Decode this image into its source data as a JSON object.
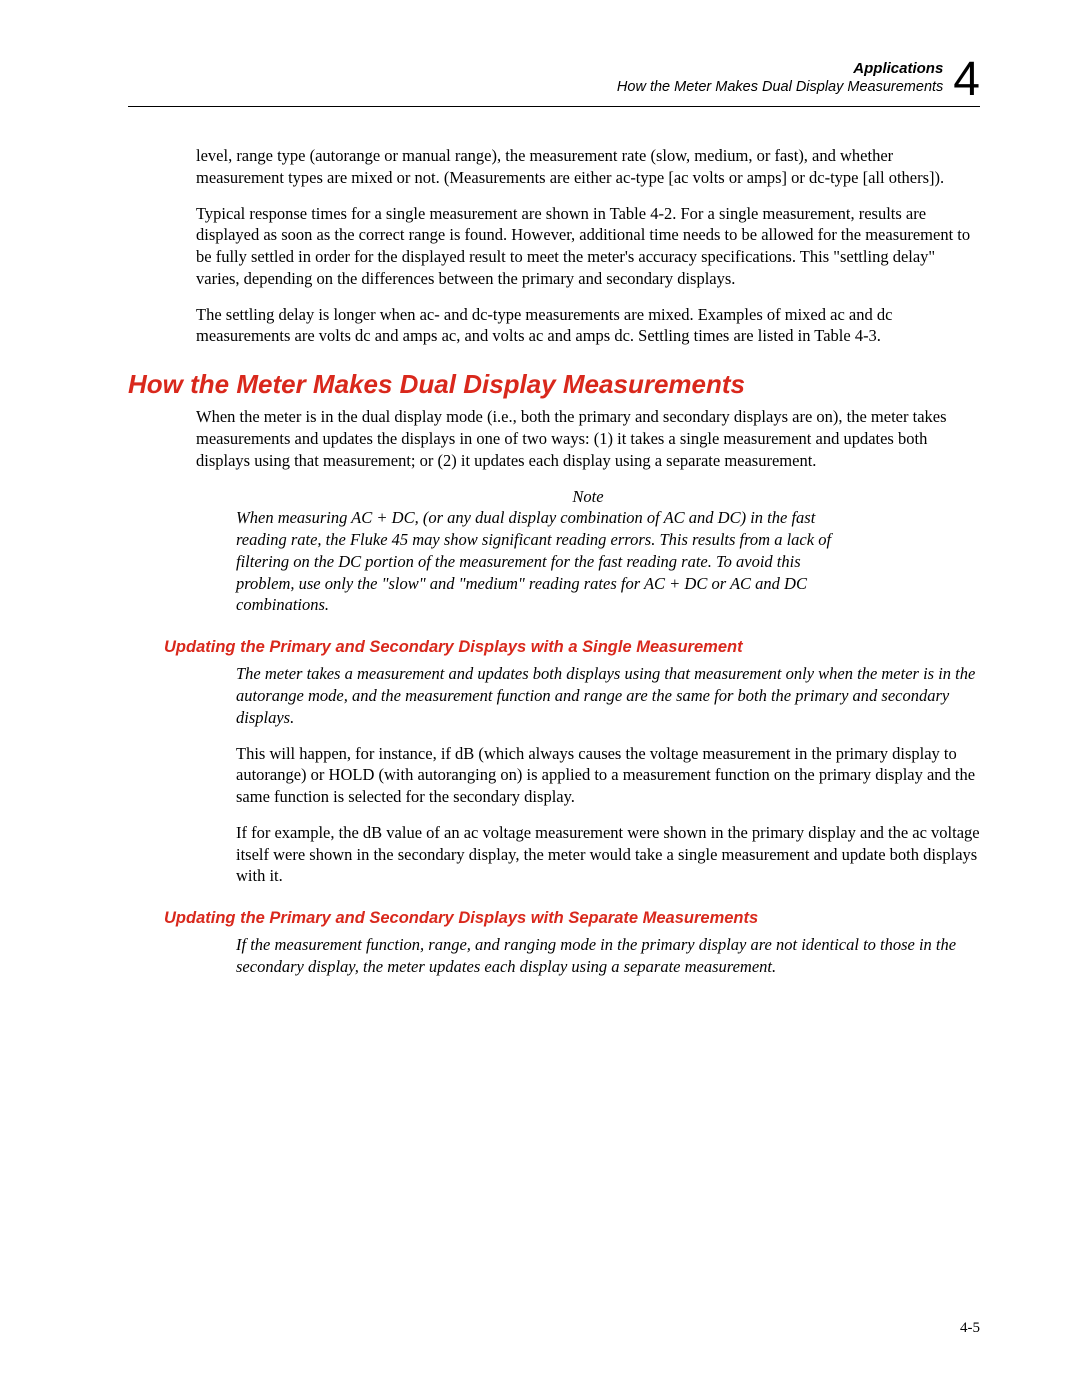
{
  "header": {
    "title": "Applications",
    "subtitle": "How the Meter Makes Dual Display Measurements",
    "chapter_number": "4"
  },
  "intro_paragraphs": {
    "p1": "level, range type (autorange or manual range), the measurement rate (slow, medium, or fast), and whether measurement types are mixed or not. (Measurements are either ac-type [ac volts or amps] or dc-type [all others]).",
    "p2": "Typical response times for a single measurement are shown in Table 4-2. For a single measurement, results are displayed as soon as the correct range is found. However, additional time needs to be allowed for the measurement to be fully settled in order for the displayed result to meet the meter's accuracy specifications. This \"settling delay\" varies, depending on the differences between the primary and secondary displays.",
    "p3": "The settling delay is longer when ac- and dc-type measurements are mixed. Examples of mixed ac and dc measurements are volts dc and amps ac, and volts ac and amps dc. Settling times are listed in Table 4-3."
  },
  "section": {
    "title": "How the Meter Makes Dual Display Measurements",
    "p1": "When the meter is in the dual display mode (i.e., both the primary and secondary displays are on), the meter takes measurements and updates the displays in one of two ways: (1) it takes a single measurement and updates both displays using that measurement; or (2) it updates each display using a separate measurement."
  },
  "note": {
    "label": "Note",
    "body": "When measuring AC + DC, (or any dual display combination of AC and DC) in the fast reading rate, the Fluke 45 may show significant reading errors. This results from a lack of filtering on the DC portion of the measurement for the fast reading rate. To avoid this problem, use only the \"slow\" and \"medium\" reading rates for AC + DC or AC and DC combinations."
  },
  "subsection1": {
    "title": "Updating the Primary and Secondary Displays with a Single Measurement",
    "p1": "The meter takes a measurement and updates both displays using that measurement only when the meter is in the autorange mode, and the measurement function and range are the same for both the primary and secondary displays.",
    "p2": "This will happen, for instance, if dB (which always causes the voltage measurement in the primary display to autorange) or HOLD (with autoranging on) is applied to a measurement function on the primary display and the same function is selected for the secondary display.",
    "p3": "If for example, the dB value of an ac voltage measurement were shown in the primary display and the ac voltage itself were shown in the secondary display, the meter would take a single measurement and update both displays with it."
  },
  "subsection2": {
    "title": "Updating the Primary and Secondary Displays with Separate Measurements",
    "p1": "If the measurement function, range, and ranging mode in the primary display are not identical to those in the secondary display, the meter updates each display using a separate measurement."
  },
  "page_number": "4-5",
  "colors": {
    "heading_red": "#d9281c",
    "text_black": "#000000",
    "background": "#ffffff"
  }
}
